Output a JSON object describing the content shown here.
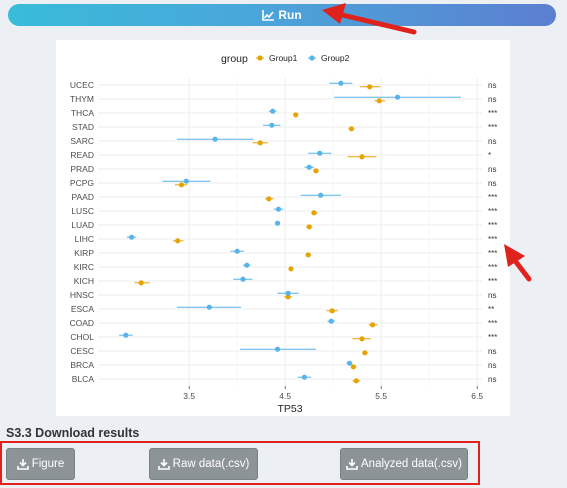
{
  "run": {
    "label": "Run",
    "icon": "line-chart-icon"
  },
  "legend": {
    "title": "group",
    "items": [
      {
        "name": "Group1",
        "color": "#E7A400"
      },
      {
        "name": "Group2",
        "color": "#56B4E9"
      }
    ]
  },
  "chart_data": {
    "type": "scatter",
    "title": "",
    "xlabel": "TP53",
    "ylabel": "",
    "xlim": [
      2.55,
      6.55
    ],
    "xticks": [
      3.5,
      4.5,
      5.5,
      6.5
    ],
    "grid": true,
    "legend_position": "top",
    "categories": [
      "UCEC",
      "THYM",
      "THCA",
      "STAD",
      "SARC",
      "READ",
      "PRAD",
      "PCPG",
      "PAAD",
      "LUSC",
      "LUAD",
      "LIHC",
      "KIRP",
      "KIRC",
      "KICH",
      "HNSC",
      "ESCA",
      "COAD",
      "CHOL",
      "CESC",
      "BRCA",
      "BLCA"
    ],
    "significance": [
      "ns",
      "ns",
      "***",
      "***",
      "ns",
      "*",
      "ns",
      "ns",
      "***",
      "***",
      "***",
      "***",
      "***",
      "***",
      "***",
      "ns",
      "**",
      "***",
      "***",
      "ns",
      "ns",
      "ns"
    ],
    "series": [
      {
        "name": "Group1",
        "values": [
          5.38,
          5.48,
          4.61,
          5.19,
          4.24,
          5.3,
          4.82,
          3.42,
          4.33,
          4.8,
          4.75,
          3.38,
          4.74,
          4.56,
          3.0,
          4.53,
          4.99,
          5.41,
          5.3,
          5.33,
          5.21,
          5.24
        ],
        "lower": [
          5.28,
          5.43,
          4.59,
          5.16,
          4.16,
          5.15,
          4.8,
          3.35,
          4.29,
          4.77,
          4.72,
          3.33,
          4.71,
          4.55,
          2.93,
          4.49,
          4.93,
          5.37,
          5.2,
          5.31,
          5.19,
          5.2
        ],
        "upper": [
          5.49,
          5.54,
          4.63,
          5.22,
          4.32,
          5.45,
          4.85,
          3.48,
          4.38,
          4.84,
          4.78,
          3.44,
          4.77,
          4.58,
          3.09,
          4.57,
          5.05,
          5.46,
          5.39,
          5.36,
          5.24,
          5.28
        ]
      },
      {
        "name": "Group2",
        "values": [
          5.08,
          5.67,
          4.37,
          4.36,
          3.77,
          4.86,
          4.75,
          3.47,
          4.87,
          4.43,
          4.42,
          2.9,
          4.0,
          4.1,
          4.06,
          4.53,
          3.71,
          4.98,
          2.84,
          4.42,
          5.17,
          4.7
        ],
        "lower": [
          4.96,
          5.01,
          4.33,
          4.27,
          3.37,
          4.74,
          4.7,
          3.22,
          4.66,
          4.38,
          4.4,
          2.85,
          3.93,
          4.06,
          3.96,
          4.42,
          3.37,
          4.94,
          2.77,
          4.03,
          5.14,
          4.63
        ],
        "upper": [
          5.2,
          6.33,
          4.41,
          4.45,
          4.17,
          4.98,
          4.8,
          3.72,
          5.08,
          4.48,
          4.44,
          2.95,
          4.07,
          4.14,
          4.16,
          4.64,
          4.04,
          5.02,
          2.91,
          4.82,
          5.2,
          4.77
        ]
      }
    ]
  },
  "download": {
    "section_title": "S3.3 Download results",
    "buttons": [
      {
        "label": "Figure",
        "icon": "download-icon"
      },
      {
        "label": "Raw data(.csv)",
        "icon": "download-icon"
      },
      {
        "label": "Analyzed data(.csv)",
        "icon": "download-icon"
      }
    ]
  },
  "annotations": {
    "arrow_color": "#e0221d"
  }
}
